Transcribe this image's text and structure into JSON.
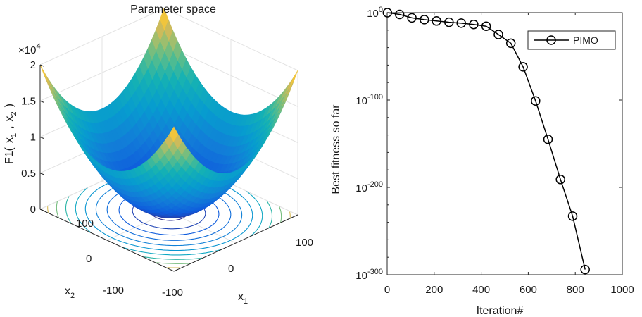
{
  "chart_data": [
    {
      "type": "surface3d",
      "title": "Parameter space",
      "zlabel": {
        "main": "F1(",
        "x1": "x",
        "x1sub": "1",
        "comma": ",",
        "x2": "x",
        "x2sub": "2",
        "close": ")"
      },
      "xlabel": {
        "main": "x",
        "sub": "1"
      },
      "ylabel": {
        "main": "x",
        "sub": "2"
      },
      "z_exponent": {
        "base": "×10",
        "power": "4"
      },
      "z_ticks": [
        "0",
        "0.5",
        "1",
        "1.5",
        "2"
      ],
      "z_tick_values": [
        0,
        0.5,
        1,
        1.5,
        2
      ],
      "x_ticks": [
        "-100",
        "0",
        "100"
      ],
      "y_ticks": [
        "-100",
        "0",
        "100"
      ],
      "xlim": [
        -100,
        100
      ],
      "ylim": [
        -100,
        100
      ],
      "zlim": [
        0,
        20000
      ],
      "surface_function": "x1^2 + x2^2",
      "colormap": "parula",
      "contour_levels": [
        400,
        1600,
        3000,
        4600,
        6400,
        8400,
        10500,
        12800,
        15200,
        17700
      ]
    },
    {
      "type": "line",
      "xlabel": "Iteration#",
      "ylabel": "Best fitness so far",
      "yscale": "log",
      "xlim": [
        0,
        1000
      ],
      "ylim_exp": [
        -300,
        0
      ],
      "x_ticks": [
        "0",
        "200",
        "400",
        "600",
        "800",
        "1000"
      ],
      "x_tick_values": [
        0,
        200,
        400,
        600,
        800,
        1000
      ],
      "y_ticks": [
        {
          "base": "10",
          "exp": "0",
          "value": 0
        },
        {
          "base": "10",
          "exp": "-100",
          "value": -100
        },
        {
          "base": "10",
          "exp": "-200",
          "value": -200
        },
        {
          "base": "10",
          "exp": "-300",
          "value": -300
        }
      ],
      "legend": {
        "position": "top-right"
      },
      "series": [
        {
          "name": "PIMO",
          "color": "#000000",
          "marker": "circle",
          "x": [
            1,
            53,
            105,
            158,
            210,
            263,
            315,
            368,
            421,
            473,
            526,
            578,
            631,
            684,
            737,
            789,
            842
          ],
          "y_log10": [
            0,
            -2,
            -6,
            -8,
            -9.5,
            -11,
            -12,
            -13.5,
            -15.5,
            -25,
            -35,
            -62,
            -101,
            -145,
            -191,
            -233,
            -294
          ]
        }
      ]
    }
  ]
}
